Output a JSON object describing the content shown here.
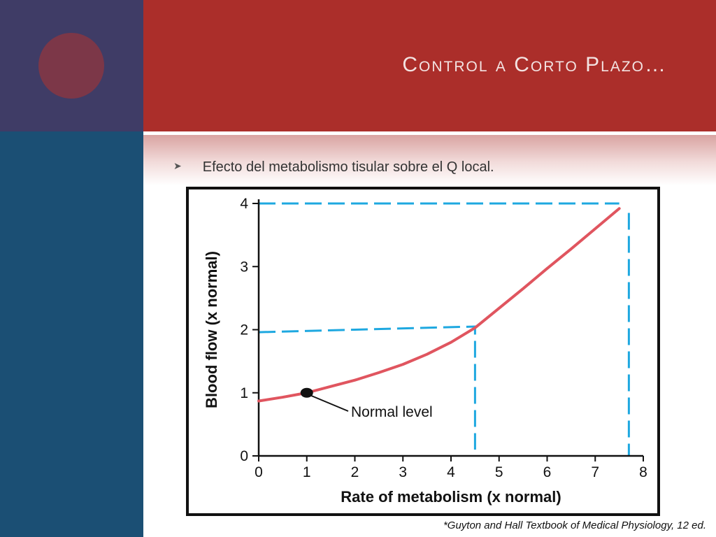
{
  "slide": {
    "title": "Control a Corto Plazo…",
    "bullet": "Efecto del metabolismo tisular sobre el Q local.",
    "citation": "*Guyton and Hall Textbook of Medical Physiology, 12 ed."
  },
  "colors": {
    "header": "#ab2e2a",
    "sidebar_top": "#3f3c66",
    "sidebar_bottom": "#1b4f74",
    "circle": "#7c3748",
    "curve": "#e0555f",
    "guide": "#1ea8e0"
  },
  "icons": {
    "bullet": "arrowhead-bullet-icon"
  },
  "chart_data": {
    "type": "line",
    "title": "",
    "xlabel": "Rate of metabolism (x normal)",
    "ylabel": "Blood flow (x normal)",
    "xlim": [
      0,
      8
    ],
    "ylim": [
      0,
      4
    ],
    "xticks": [
      "0",
      "1",
      "2",
      "3",
      "4",
      "5",
      "6",
      "7",
      "8"
    ],
    "yticks": [
      "0",
      "1",
      "2",
      "3",
      "4"
    ],
    "grid": false,
    "series": [
      {
        "name": "",
        "x": [
          0,
          0.5,
          1,
          1.5,
          2,
          2.5,
          3,
          3.5,
          4,
          4.5,
          5,
          5.5,
          6,
          6.5,
          7,
          7.5
        ],
        "y": [
          0.87,
          0.93,
          1.0,
          1.1,
          1.2,
          1.32,
          1.45,
          1.61,
          1.8,
          2.03,
          2.34,
          2.65,
          2.97,
          3.28,
          3.6,
          3.92
        ]
      }
    ],
    "marker": {
      "x": 1,
      "y": 1,
      "label": "Normal level"
    },
    "guide_lines": [
      {
        "points": [
          [
            0,
            1.96
          ],
          [
            4.5,
            2.05
          ],
          [
            4.5,
            0.1
          ]
        ]
      },
      {
        "points": [
          [
            0,
            4.0
          ],
          [
            7.5,
            4.0
          ]
        ]
      },
      {
        "points": [
          [
            7.7,
            3.85
          ],
          [
            7.7,
            0.0
          ]
        ]
      }
    ]
  }
}
